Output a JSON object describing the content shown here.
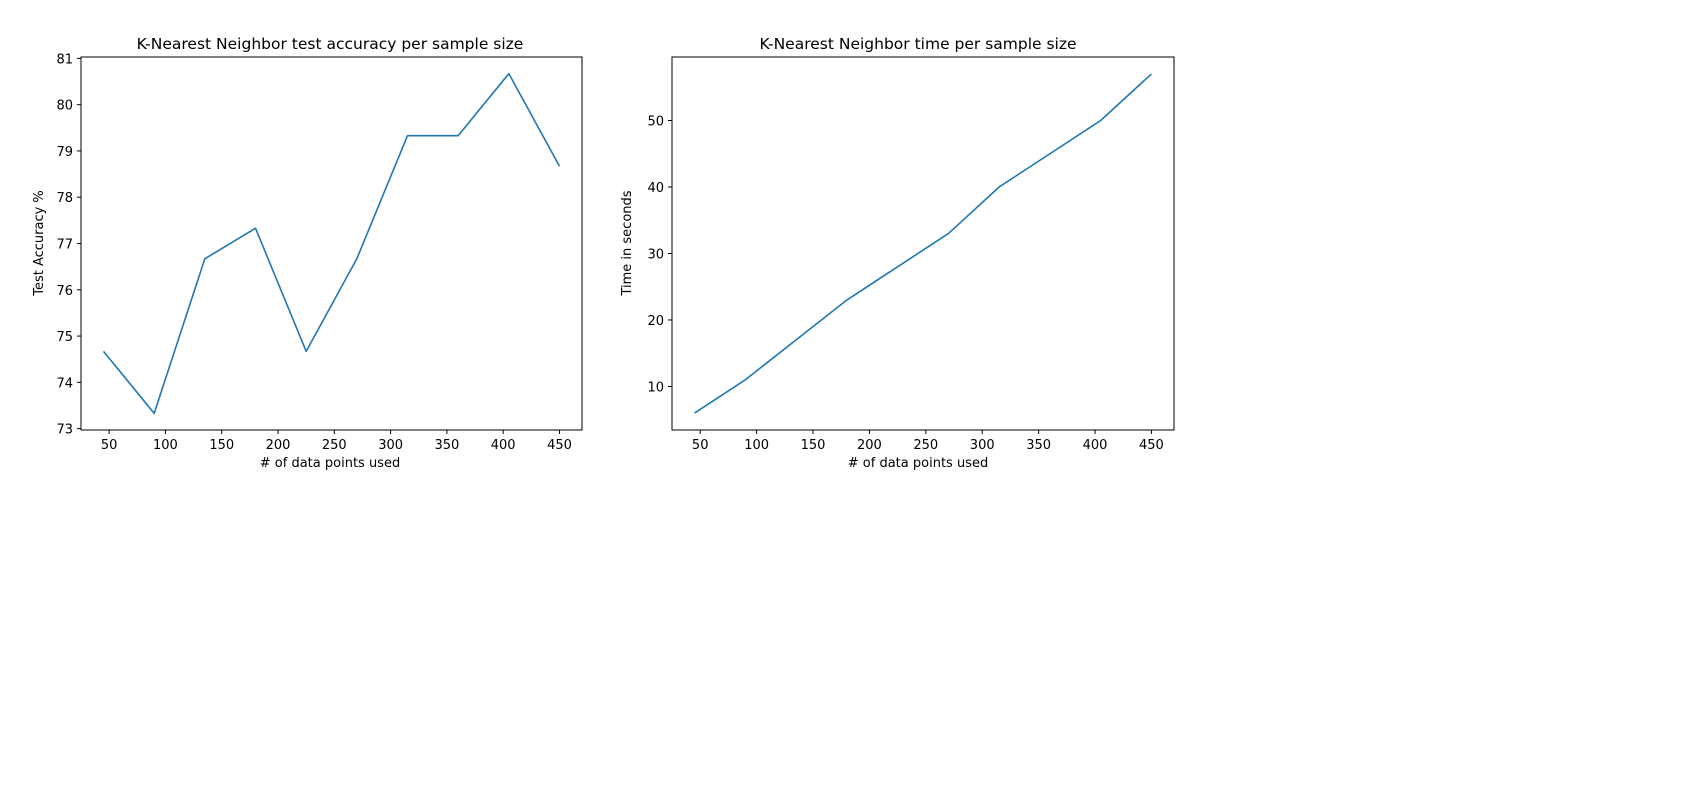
{
  "line_color": "#1f77b4",
  "chart_data": [
    {
      "type": "line",
      "title": "K-Nearest Neighbor test accuracy per sample size",
      "xlabel": "# of data points used",
      "ylabel": "Test Accuracy %",
      "x": [
        45,
        90,
        135,
        180,
        225,
        270,
        315,
        360,
        405,
        450
      ],
      "y": [
        74.67,
        73.33,
        76.67,
        77.33,
        74.67,
        76.67,
        79.33,
        79.33,
        80.67,
        78.67
      ],
      "xlim": [
        25,
        470
      ],
      "ylim": [
        72.97,
        81.03
      ],
      "xticks": [
        50,
        100,
        150,
        200,
        250,
        300,
        350,
        400,
        450
      ],
      "yticks": [
        73,
        74,
        75,
        76,
        77,
        78,
        79,
        80,
        81
      ],
      "grid": false,
      "legend": "none"
    },
    {
      "type": "line",
      "title": "K-Nearest Neighbor time per sample size",
      "xlabel": "# of data points used",
      "ylabel": "Time in seconds",
      "x": [
        45,
        90,
        135,
        180,
        225,
        270,
        315,
        360,
        405,
        450
      ],
      "y": [
        6,
        11,
        17,
        23,
        28,
        33,
        40,
        45,
        50,
        57
      ],
      "xlim": [
        25,
        470
      ],
      "ylim": [
        3.45,
        59.55
      ],
      "xticks": [
        50,
        100,
        150,
        200,
        250,
        300,
        350,
        400,
        450
      ],
      "yticks": [
        10,
        20,
        30,
        40,
        50
      ],
      "grid": false,
      "legend": "none"
    }
  ]
}
